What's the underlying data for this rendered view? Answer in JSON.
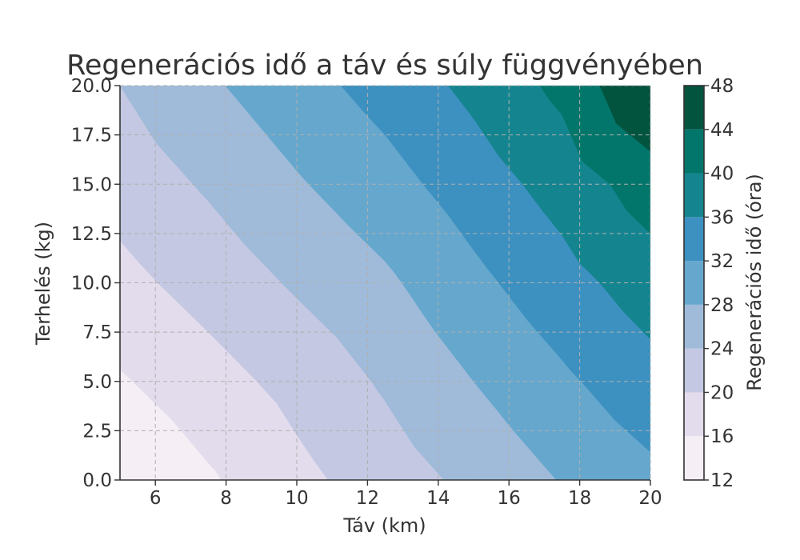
{
  "chart_data": {
    "type": "heatmap",
    "subtype": "filled-contour",
    "title": "Regenerációs idő a táv és súly függvényében",
    "xlabel": "Táv (km)",
    "ylabel": "Terhelés (kg)",
    "xlim": [
      5,
      20
    ],
    "ylim": [
      0,
      20
    ],
    "xticks": [
      "6",
      "8",
      "10",
      "12",
      "14",
      "16",
      "18",
      "20"
    ],
    "yticks": [
      "0.0",
      "2.5",
      "5.0",
      "7.5",
      "10.0",
      "12.5",
      "15.0",
      "17.5",
      "20.0"
    ],
    "grid": true,
    "x": [
      5,
      7.5,
      10,
      12.5,
      15,
      17.5,
      20
    ],
    "y": [
      0,
      5,
      10,
      15,
      20
    ],
    "z": [
      [
        12.4,
        15.5,
        18.9,
        22.0,
        25.0,
        28.2,
        31.0
      ],
      [
        15.6,
        18.4,
        21.3,
        24.5,
        28.0,
        31.3,
        34.5
      ],
      [
        18.8,
        21.6,
        24.5,
        27.3,
        31.0,
        34.5,
        38.0
      ],
      [
        21.6,
        24.5,
        27.6,
        30.5,
        34.0,
        37.6,
        42.0
      ],
      [
        24.0,
        27.4,
        30.5,
        33.5,
        37.0,
        41.0,
        48.0
      ]
    ],
    "levels": [
      12,
      16,
      20,
      24,
      28,
      32,
      36,
      40,
      44,
      48
    ],
    "colorbar": {
      "label": "Regenerációs idő (óra)",
      "ticks": [
        "12",
        "16",
        "20",
        "24",
        "28",
        "32",
        "36",
        "40",
        "44",
        "48"
      ],
      "colors": [
        "#f6eef5",
        "#e2dcec",
        "#c4c8e2",
        "#9fbbd9",
        "#65a7cd",
        "#3d91c0",
        "#14858f",
        "#02766a",
        "#02543f"
      ]
    }
  }
}
